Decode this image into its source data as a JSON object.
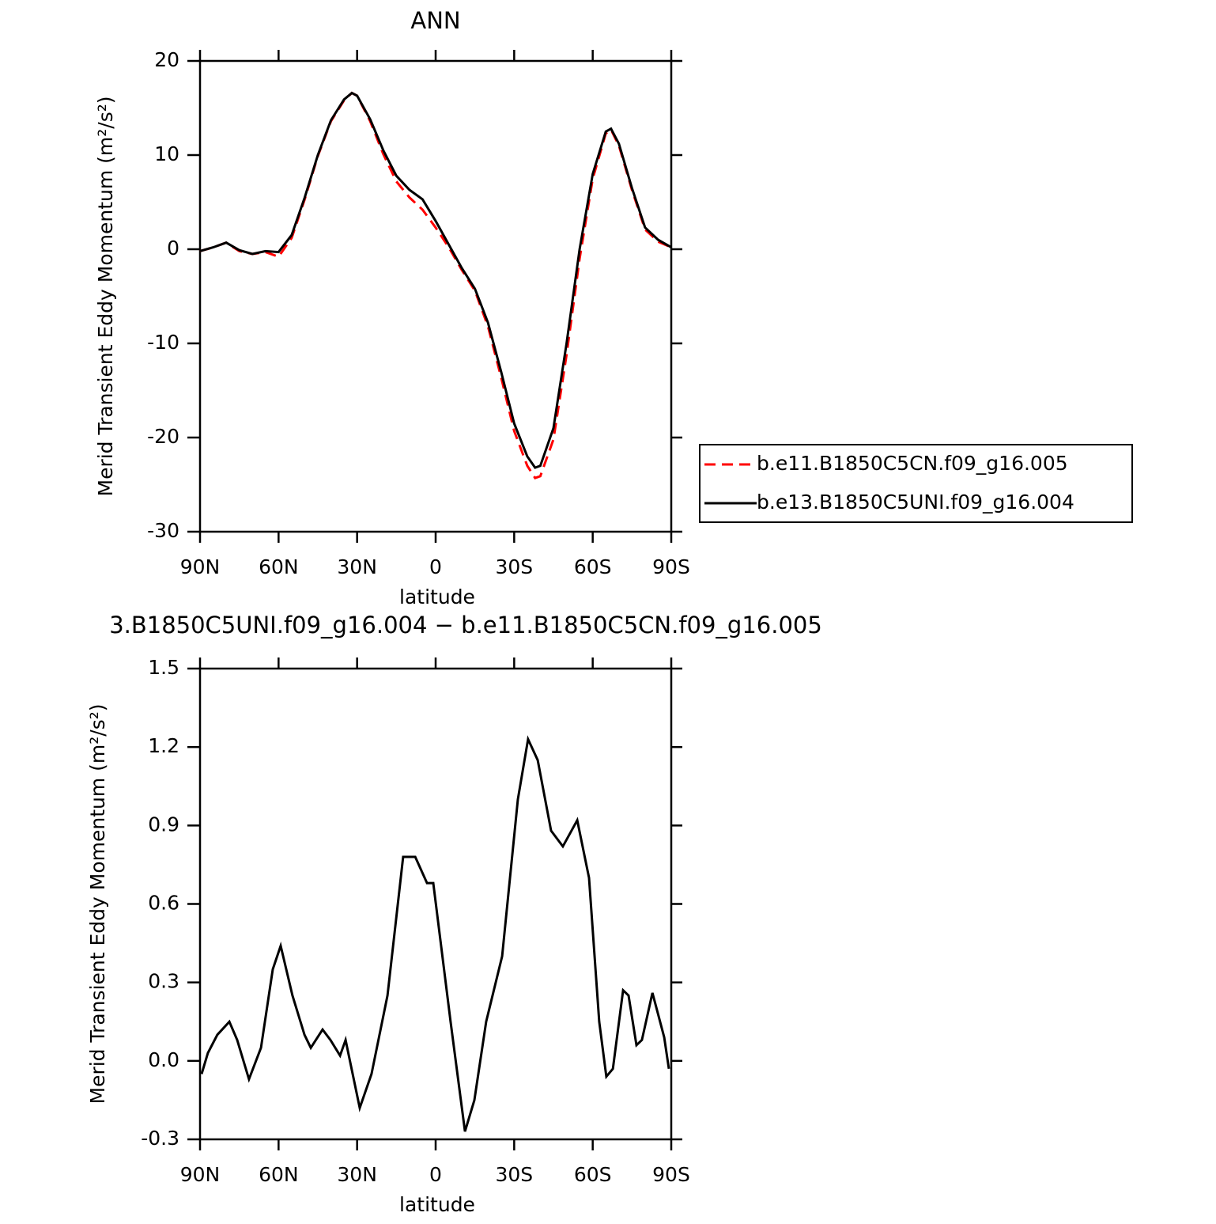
{
  "chart_data": [
    {
      "type": "line",
      "title": "ANN",
      "xlabel": "latitude",
      "ylabel": "Merid Transient Eddy Momentum (m²/s²)",
      "x": [
        90,
        85,
        80,
        75,
        70,
        65,
        60,
        55,
        50,
        45,
        40,
        35,
        32,
        30,
        25,
        20,
        15,
        10,
        5,
        0,
        -5,
        -10,
        -15,
        -20,
        -25,
        -30,
        -35,
        -38,
        -40,
        -45,
        -50,
        -55,
        -60,
        -65,
        -67,
        -70,
        -75,
        -80,
        -85,
        -90
      ],
      "series": [
        {
          "name": "b.e11.B1850C5CN.f09_g16.005",
          "color": "#ff0000",
          "dash": true,
          "values": [
            -0.2,
            0.2,
            0.7,
            -0.2,
            -0.5,
            -0.3,
            -0.8,
            1.2,
            5.3,
            9.9,
            13.6,
            15.8,
            16.6,
            16.3,
            13.6,
            10.1,
            7.2,
            5.5,
            4.2,
            2.3,
            0.2,
            -2.2,
            -4.4,
            -8.2,
            -13.6,
            -19.3,
            -23.0,
            -24.3,
            -24.1,
            -20.2,
            -11.2,
            -1.0,
            7.5,
            12.3,
            12.7,
            11.0,
            6.3,
            2.1,
            0.8,
            0.2
          ]
        },
        {
          "name": "b.e13.B1850C5UNI.f09_g16.004",
          "color": "#000000",
          "dash": false,
          "values": [
            -0.2,
            0.2,
            0.7,
            -0.1,
            -0.5,
            -0.2,
            -0.3,
            1.5,
            5.5,
            10.0,
            13.7,
            15.9,
            16.6,
            16.3,
            13.8,
            10.5,
            7.8,
            6.3,
            5.3,
            3.0,
            0.5,
            -2.0,
            -4.2,
            -7.8,
            -13.0,
            -18.5,
            -22.0,
            -23.2,
            -23.0,
            -19.0,
            -10.0,
            0.0,
            8.0,
            12.5,
            12.8,
            11.2,
            6.5,
            2.3,
            1.0,
            0.2
          ]
        }
      ],
      "xlim": [
        90,
        -90
      ],
      "xticks": [
        {
          "value": 90,
          "label": "90N"
        },
        {
          "value": 60,
          "label": "60N"
        },
        {
          "value": 30,
          "label": "30N"
        },
        0,
        {
          "value": -30,
          "label": "30S"
        },
        {
          "value": -60,
          "label": "60S"
        },
        {
          "value": -90,
          "label": "90S"
        }
      ],
      "ylim": [
        -30,
        20
      ],
      "yticks": [
        20,
        10,
        0,
        -10,
        -20,
        -30
      ],
      "legend": "right"
    },
    {
      "type": "line",
      "title": "3.B1850C5UNI.f09_g16.004 − b.e11.B1850C5CN.f09_g16.005",
      "xlabel": "latitude",
      "ylabel": "Merid Transient Eddy Momentum (m²/s²)",
      "x": [
        89.4,
        87,
        83.4,
        78.8,
        75.8,
        71.3,
        66.7,
        62.2,
        59.2,
        54.7,
        50.1,
        47.7,
        43.2,
        40.2,
        36.5,
        34.4,
        29,
        24.5,
        18.4,
        12.4,
        7.8,
        3.3,
        0.9,
        -5.7,
        -11.2,
        -14.8,
        -19.3,
        -25.4,
        -31.4,
        -35.3,
        -39,
        -44.1,
        -48.6,
        -54.1,
        -58.6,
        -62.5,
        -65.2,
        -67.7,
        -71.6,
        -73.7,
        -76.7,
        -78.8,
        -82.8,
        -85.2,
        -87.3,
        -89.1
      ],
      "series": [
        {
          "name": "difference",
          "color": "#000000",
          "dash": false,
          "values": [
            -0.05,
            0.03,
            0.1,
            0.15,
            0.08,
            -0.07,
            0.05,
            0.35,
            0.44,
            0.25,
            0.1,
            0.05,
            0.12,
            0.08,
            0.02,
            0.08,
            -0.18,
            -0.05,
            0.25,
            0.78,
            0.78,
            0.68,
            0.68,
            0.15,
            -0.27,
            -0.15,
            0.15,
            0.4,
            1.0,
            1.23,
            1.15,
            0.88,
            0.82,
            0.92,
            0.7,
            0.15,
            -0.06,
            -0.03,
            0.27,
            0.25,
            0.06,
            0.08,
            0.26,
            0.17,
            0.09,
            -0.03
          ]
        }
      ],
      "xlim": [
        90,
        -90
      ],
      "xticks": [
        {
          "value": 90,
          "label": "90N"
        },
        {
          "value": 60,
          "label": "60N"
        },
        {
          "value": 30,
          "label": "30N"
        },
        0,
        {
          "value": -30,
          "label": "30S"
        },
        {
          "value": -60,
          "label": "60S"
        },
        {
          "value": -90,
          "label": "90S"
        }
      ],
      "ylim": [
        -0.3,
        1.5
      ],
      "yticks": [
        1.5,
        1.2,
        0.9,
        0.6,
        0.3,
        {
          "value": 0,
          "label": "0.0"
        },
        -0.3
      ]
    }
  ]
}
